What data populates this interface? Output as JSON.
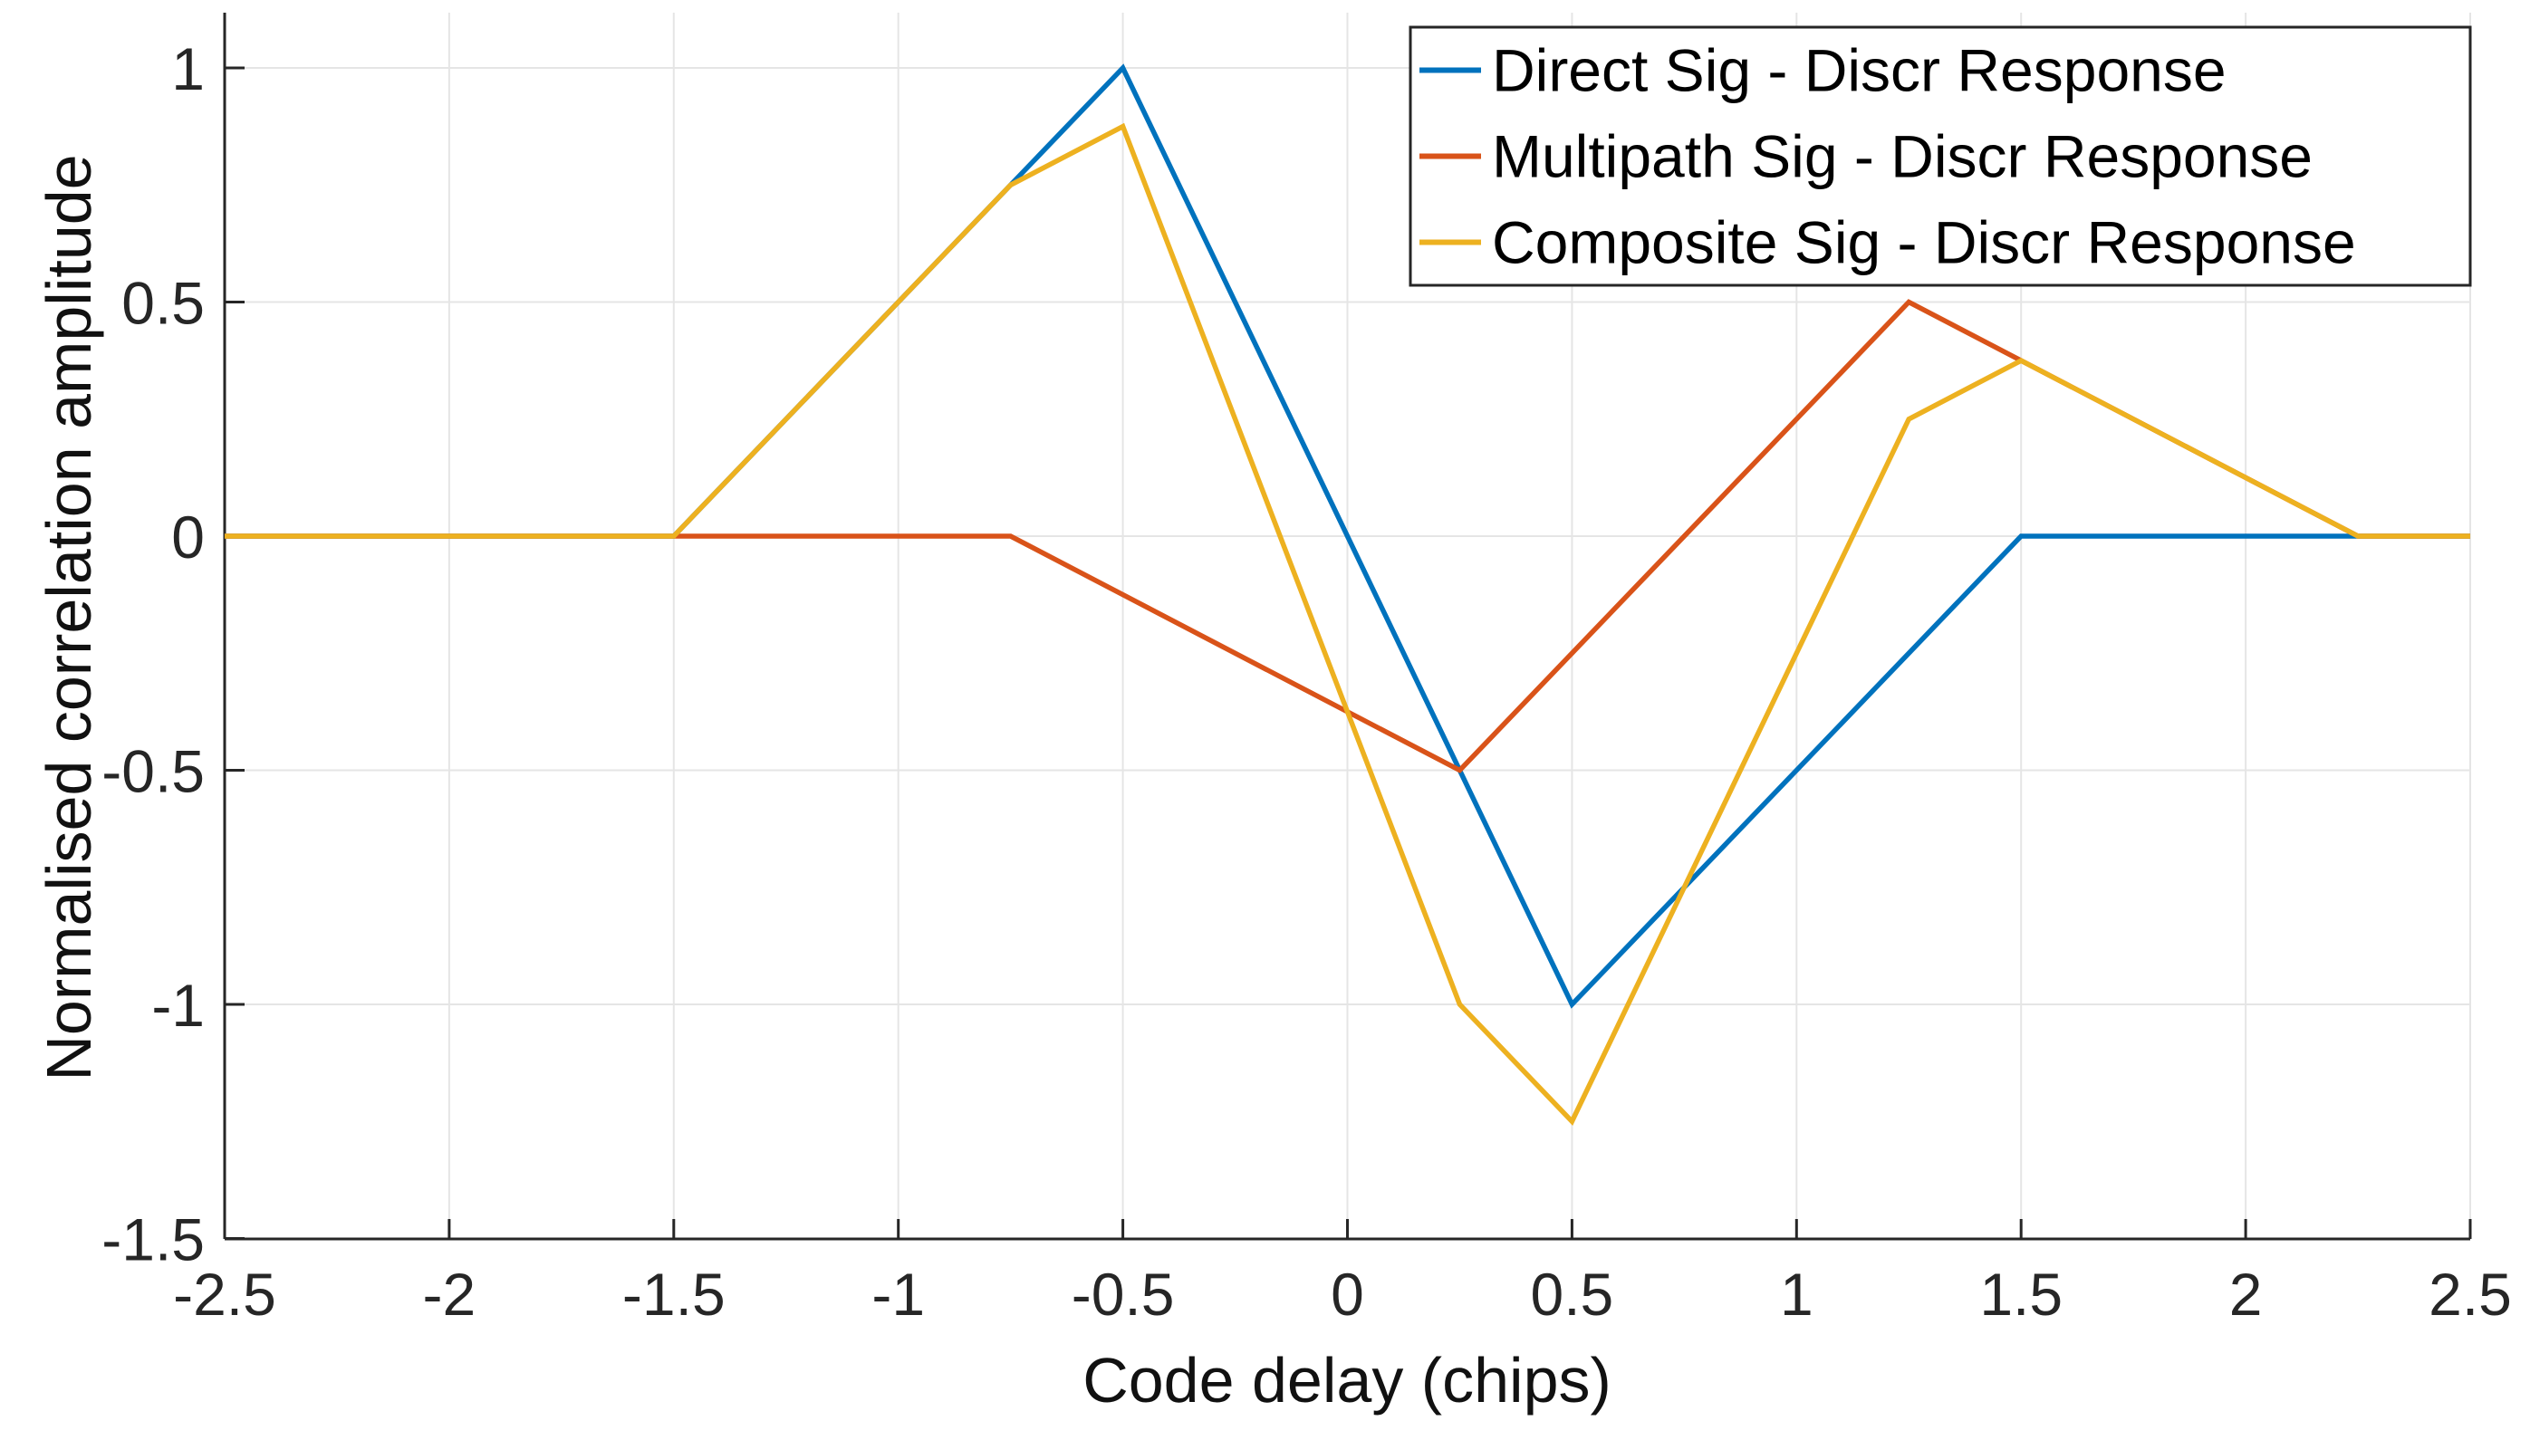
{
  "figure": {
    "background": "#FFFFFF",
    "axis_color": "#262626",
    "grid_color": "#E5E5E5",
    "tick_text_color": "#262626",
    "legend": {
      "background": "#FFFFFF",
      "border_color": "#262626",
      "position": "top-right"
    }
  },
  "chart_data": {
    "type": "line",
    "title": "",
    "xlabel": "Code delay (chips)",
    "ylabel": "Normalised correlation amplitude",
    "xlim": [
      -2.5,
      2.5
    ],
    "ylim": [
      -1.5,
      1.12
    ],
    "xticks": [
      -2.5,
      -2,
      -1.5,
      -1,
      -0.5,
      0,
      0.5,
      1,
      1.5,
      2,
      2.5
    ],
    "yticks": [
      -1.5,
      -1,
      -0.5,
      0,
      0.5,
      1
    ],
    "grid": true,
    "legend_position": "top-right",
    "series": [
      {
        "name": "Direct Sig - Discr Response",
        "color": "#0072BD",
        "points": [
          [
            -2.5,
            0
          ],
          [
            -1.5,
            0
          ],
          [
            -0.5,
            1
          ],
          [
            0.5,
            -1
          ],
          [
            1.5,
            0
          ],
          [
            2.5,
            0
          ]
        ]
      },
      {
        "name": "Multipath Sig - Discr Response",
        "color": "#D95319",
        "points": [
          [
            -2.5,
            0
          ],
          [
            -0.75,
            0
          ],
          [
            0.25,
            -0.5
          ],
          [
            1.25,
            0.5
          ],
          [
            2.25,
            0
          ],
          [
            2.5,
            0
          ]
        ]
      },
      {
        "name": "Composite Sig - Discr Response",
        "color": "#EDB120",
        "points": [
          [
            -2.5,
            0
          ],
          [
            -1.5,
            0
          ],
          [
            -0.75,
            0.75
          ],
          [
            -0.5,
            0.875
          ],
          [
            0.25,
            -1
          ],
          [
            0.5,
            -1.25
          ],
          [
            1.25,
            0.25
          ],
          [
            1.5,
            0.375
          ],
          [
            2.25,
            0
          ],
          [
            2.5,
            0
          ]
        ]
      }
    ]
  }
}
